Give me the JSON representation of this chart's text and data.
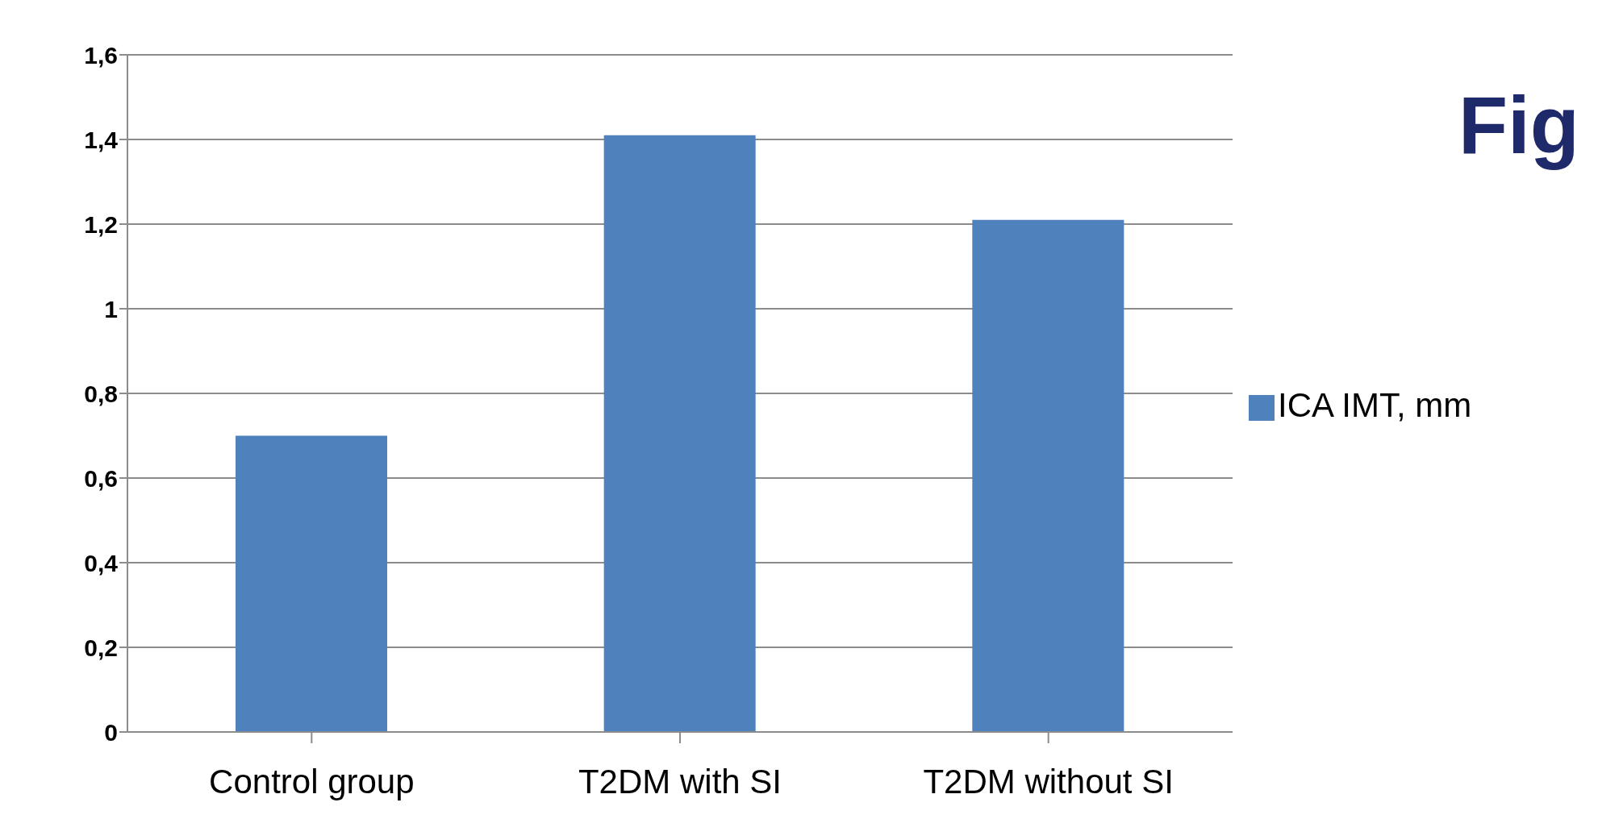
{
  "chart_data": {
    "type": "bar",
    "title": "Fig",
    "categories": [
      "Control group",
      "T2DM with SI",
      "T2DM without SI"
    ],
    "series": [
      {
        "name": "ICA IMT, mm",
        "color": "#4f81bd",
        "values": [
          0.7,
          1.41,
          1.21
        ]
      }
    ],
    "ylim": [
      0,
      1.6
    ],
    "yticks": [
      {
        "value": 0,
        "label": "0"
      },
      {
        "value": 0.2,
        "label": "0,2"
      },
      {
        "value": 0.4,
        "label": "0,4"
      },
      {
        "value": 0.6,
        "label": "0,6"
      },
      {
        "value": 0.8,
        "label": "0,8"
      },
      {
        "value": 1,
        "label": "1"
      },
      {
        "value": 1.2,
        "label": "1,2"
      },
      {
        "value": 1.4,
        "label": "1,4"
      },
      {
        "value": 1.6,
        "label": "1,6"
      }
    ],
    "grid": "y",
    "legend": "right"
  }
}
